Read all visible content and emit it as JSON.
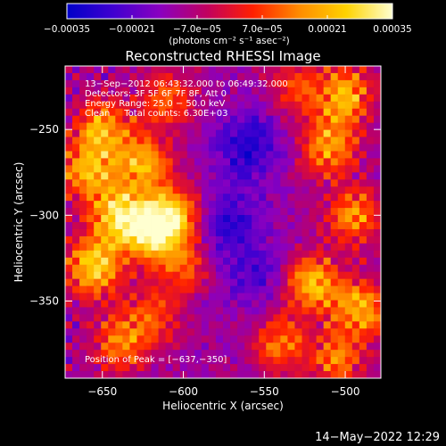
{
  "chart_data": {
    "type": "heatmap",
    "title": "Reconstructed RHESSI Image",
    "xlabel": "Heliocentric X (arcsec)",
    "ylabel": "Heliocentric Y (arcsec)",
    "xlim": [
      -673,
      -478
    ],
    "ylim": [
      -395,
      -213
    ],
    "x_ticks": [
      -650,
      -600,
      -550,
      -500
    ],
    "x_tick_labels": [
      "−650",
      "−600",
      "−550",
      "−500"
    ],
    "y_ticks": [
      -250,
      -300,
      -350
    ],
    "y_tick_labels": [
      "−250",
      "−300",
      "−350"
    ],
    "colorbar": {
      "range": [
        -0.00035,
        0.00035
      ],
      "ticks": [
        -0.00035,
        -0.00021,
        -7e-05,
        7e-05,
        0.00021,
        0.00035
      ],
      "tick_labels": [
        "−0.00035",
        "−0.00021",
        "−7.0e−05",
        "7.0e−05",
        "0.00021",
        "0.00035"
      ],
      "unit_label": "(photons cm⁻² s⁻¹ asec⁻²)",
      "colors": [
        "#0000c8",
        "#4000d0",
        "#8a00c0",
        "#c00060",
        "#ff2000",
        "#ff8c00",
        "#ffd200",
        "#ffffd0"
      ]
    },
    "info": [
      "13−Sep−2012 06:43:32.000 to 06:49:32.000",
      "Detectors: 3F 5F 6F 7F 8F, Att 0",
      "Energy Range: 25.0 − 50.0 keV",
      "Clean     Total counts: 6.30E+03"
    ],
    "peak_text": "Position of Peak = [−637,−350]",
    "peak": [
      -637,
      -350
    ],
    "sources": [
      {
        "x": -655,
        "y": -330,
        "amp": 1.0
      },
      {
        "x": -640,
        "y": -300,
        "amp": 0.95
      },
      {
        "x": -620,
        "y": -310,
        "amp": 0.95
      },
      {
        "x": -605,
        "y": -300,
        "amp": 0.85
      },
      {
        "x": -625,
        "y": -270,
        "amp": 0.8
      },
      {
        "x": -650,
        "y": -250,
        "amp": 0.8
      },
      {
        "x": -660,
        "y": -275,
        "amp": 0.75
      },
      {
        "x": -600,
        "y": -330,
        "amp": 0.5
      },
      {
        "x": -640,
        "y": -375,
        "amp": 0.6
      },
      {
        "x": -620,
        "y": -360,
        "amp": 0.5
      },
      {
        "x": -500,
        "y": -230,
        "amp": 0.8
      },
      {
        "x": -510,
        "y": -260,
        "amp": 0.75
      },
      {
        "x": -495,
        "y": -300,
        "amp": 0.7
      },
      {
        "x": -520,
        "y": -340,
        "amp": 0.85
      },
      {
        "x": -490,
        "y": -355,
        "amp": 0.8
      },
      {
        "x": -540,
        "y": -375,
        "amp": 0.6
      },
      {
        "x": -505,
        "y": -385,
        "amp": 0.6
      },
      {
        "x": -610,
        "y": -232,
        "amp": 0.55
      },
      {
        "x": -530,
        "y": -225,
        "amp": 0.45
      }
    ],
    "dips": [
      {
        "x": -560,
        "y": -260,
        "amp": 1.0
      },
      {
        "x": -575,
        "y": -305,
        "amp": 0.9
      },
      {
        "x": -555,
        "y": -335,
        "amp": 0.6
      }
    ]
  },
  "footer": {
    "timestamp": "14−May−2022 12:29"
  }
}
